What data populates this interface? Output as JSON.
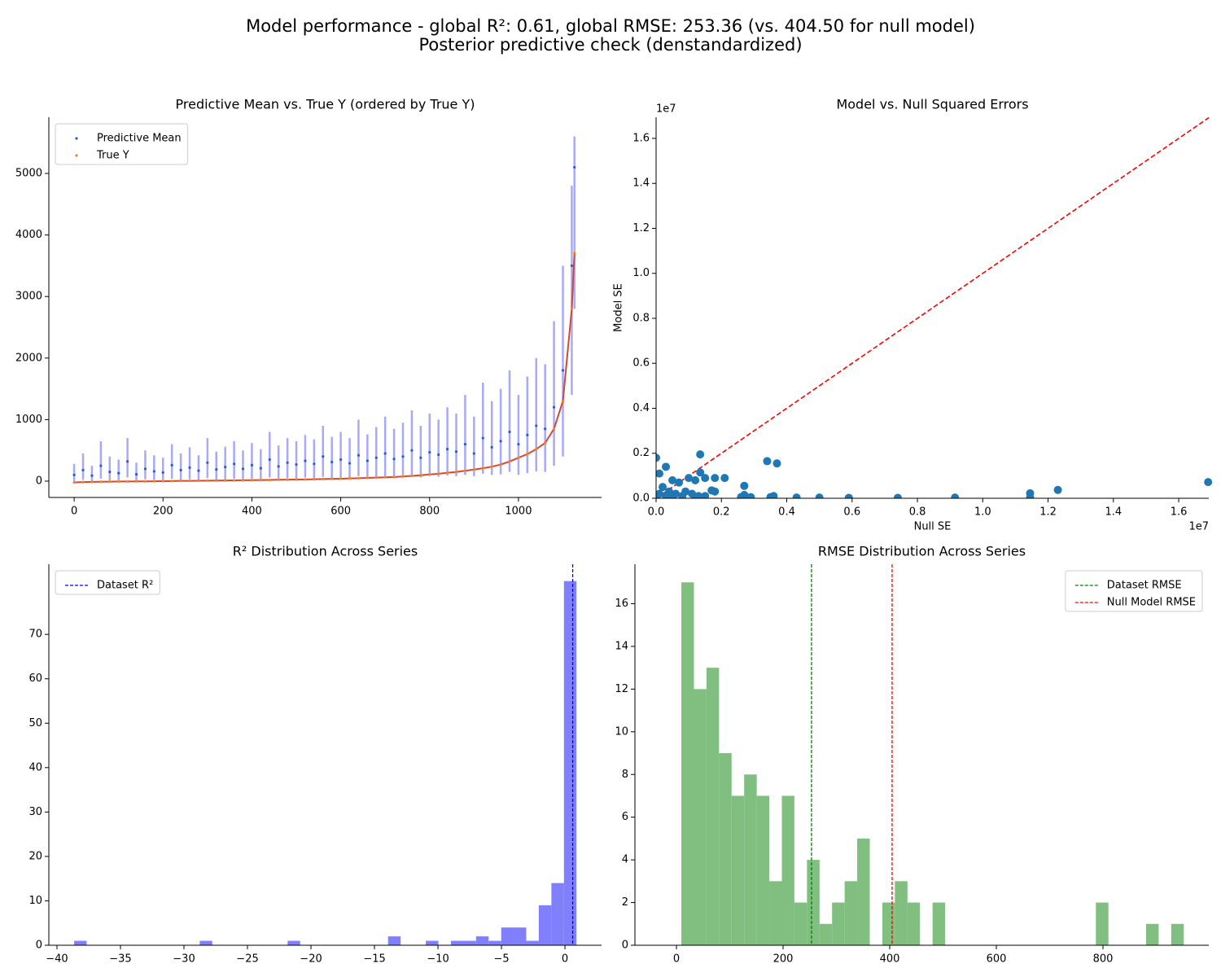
{
  "title": "Model performance - global R²: 0.61, global RMSE: 253.36 (vs. 404.50 for null model)",
  "subtitle": "Posterior predictive check (denstandardized)",
  "chart_data": [
    {
      "type": "line",
      "title": "Predictive Mean vs. True Y (ordered by True Y)",
      "legend": "upper left",
      "x": [
        0,
        20,
        40,
        60,
        80,
        100,
        120,
        140,
        160,
        180,
        200,
        220,
        240,
        260,
        280,
        300,
        320,
        340,
        360,
        380,
        400,
        420,
        440,
        460,
        480,
        500,
        520,
        540,
        560,
        580,
        600,
        620,
        640,
        660,
        680,
        700,
        720,
        740,
        760,
        780,
        800,
        820,
        840,
        860,
        880,
        900,
        920,
        940,
        960,
        980,
        1000,
        1020,
        1040,
        1060,
        1080,
        1100,
        1120,
        1126
      ],
      "xlim": [
        -57,
        1187
      ],
      "xticks": [
        0,
        200,
        400,
        600,
        800,
        1000
      ],
      "ylim": [
        -265,
        5913
      ],
      "yticks": [
        0,
        1000,
        2000,
        3000,
        4000,
        5000
      ],
      "series": [
        {
          "name": "Predictive Mean",
          "color": "#2a5bd7",
          "interval_color": "#6f6ff5",
          "values": [
            100,
            180,
            90,
            250,
            150,
            130,
            320,
            110,
            200,
            160,
            140,
            260,
            180,
            220,
            170,
            300,
            190,
            230,
            280,
            200,
            260,
            210,
            350,
            240,
            300,
            270,
            330,
            280,
            400,
            310,
            350,
            290,
            420,
            330,
            380,
            450,
            360,
            400,
            500,
            380,
            470,
            430,
            520,
            480,
            600,
            450,
            700,
            550,
            650,
            800,
            600,
            750,
            900,
            850,
            1200,
            1800,
            3500,
            5100
          ],
          "lower": [
            0,
            20,
            0,
            40,
            10,
            10,
            60,
            0,
            30,
            20,
            10,
            40,
            20,
            30,
            20,
            50,
            20,
            30,
            40,
            30,
            40,
            30,
            60,
            40,
            50,
            40,
            60,
            40,
            70,
            50,
            60,
            40,
            80,
            50,
            60,
            80,
            60,
            70,
            90,
            60,
            80,
            70,
            90,
            80,
            100,
            80,
            120,
            100,
            110,
            150,
            100,
            130,
            160,
            150,
            250,
            400,
            1400,
            2800
          ],
          "upper": [
            280,
            450,
            250,
            650,
            400,
            350,
            700,
            300,
            500,
            420,
            380,
            600,
            450,
            550,
            420,
            700,
            480,
            560,
            650,
            500,
            620,
            520,
            800,
            580,
            700,
            650,
            750,
            680,
            900,
            720,
            800,
            700,
            1000,
            760,
            880,
            1050,
            850,
            950,
            1150,
            900,
            1100,
            1000,
            1200,
            1100,
            1400,
            1050,
            1600,
            1300,
            1500,
            1800,
            1400,
            1700,
            2000,
            1900,
            2600,
            3500,
            4800,
            5600
          ]
        },
        {
          "name": "True Y",
          "color": "#ff7f0e",
          "line_color": "#d0483a",
          "values": [
            -20,
            -15,
            -12,
            -10,
            -8,
            -6,
            -5,
            -4,
            -3,
            -2,
            0,
            2,
            4,
            5,
            6,
            8,
            10,
            11,
            12,
            14,
            16,
            18,
            20,
            22,
            24,
            26,
            28,
            31,
            34,
            37,
            40,
            44,
            48,
            52,
            57,
            62,
            68,
            75,
            85,
            95,
            108,
            120,
            135,
            150,
            168,
            188,
            210,
            235,
            270,
            320,
            380,
            440,
            520,
            620,
            850,
            1300,
            2800,
            3700
          ]
        }
      ]
    },
    {
      "type": "scatter",
      "title": "Model vs. Null Squared Errors",
      "x_label": "Null SE",
      "y_label": "Model SE",
      "x_offset_label": "1e7",
      "y_offset_label": "1e7",
      "color": "#1f77b4",
      "diagonal_color": "#ff0000",
      "xlim": [
        0,
        1.692
      ],
      "ylim": [
        0,
        1.694
      ],
      "xticks": [
        {
          "value": 0,
          "label": "0.0"
        },
        0.2,
        0.4,
        0.6,
        0.8,
        {
          "value": 1,
          "label": "1.0"
        },
        1.2,
        1.4,
        1.6
      ],
      "yticks": [
        {
          "value": 0,
          "label": "0.0"
        },
        0.2,
        0.4,
        0.6,
        0.8,
        {
          "value": 1,
          "label": "1.0"
        },
        1.2,
        1.4,
        1.6
      ],
      "x": [
        0.135,
        0.135,
        0.1,
        0.12,
        0.15,
        0.18,
        0.21,
        0.17,
        0.18,
        0.11,
        0.13,
        0.15,
        0.07,
        0.05,
        0.03,
        0.0,
        0.02,
        0.04,
        0.06,
        0.08,
        0.01,
        0.03,
        0.26,
        0.27,
        0.27,
        0.29,
        0.34,
        0.37,
        0.35,
        0.36,
        0.43,
        0.5,
        0.59,
        0.74,
        0.915,
        1.145,
        1.145,
        1.23,
        1.69,
        0.0,
        0.01,
        0.05,
        0.09,
        0.12
      ],
      "values": [
        0.195,
        0.115,
        0.09,
        0.08,
        0.09,
        0.09,
        0.09,
        0.035,
        0.03,
        0.02,
        0.01,
        0.01,
        0.07,
        0.08,
        0.14,
        0.18,
        0.05,
        0.03,
        0.02,
        0.01,
        0.11,
        0.01,
        0.005,
        0.055,
        0.015,
        0.005,
        0.165,
        0.155,
        0.005,
        0.01,
        0.003,
        0.003,
        0.002,
        0.002,
        0.003,
        0.022,
        0.002,
        0.037,
        0.072,
        0.0,
        0.02,
        0.005,
        0.03,
        0.005
      ]
    },
    {
      "type": "histogram",
      "title": "R² Distribution Across Series",
      "legend": "upper left",
      "color": "#8080ff",
      "bins": [
        -38.65,
        -37.66,
        -36.67,
        -35.68,
        -34.69,
        -33.71,
        -32.72,
        -31.73,
        -30.74,
        -29.75,
        -28.76,
        -27.77,
        -26.78,
        -25.79,
        -24.8,
        -23.82,
        -22.83,
        -21.84,
        -20.85,
        -19.86,
        -18.87,
        -17.88,
        -16.89,
        -15.9,
        -14.91,
        -13.93,
        -12.94,
        -11.95,
        -10.96,
        -9.97,
        -8.98,
        -7.99,
        -7.0,
        -6.01,
        -5.02,
        -4.04,
        -3.05,
        -2.06,
        -1.07,
        -0.08,
        0.91
      ],
      "values": [
        1,
        0,
        0,
        0,
        0,
        0,
        0,
        0,
        0,
        0,
        1,
        0,
        0,
        0,
        0,
        0,
        0,
        1,
        0,
        0,
        0,
        0,
        0,
        0,
        0,
        2,
        0,
        0,
        1,
        0,
        1,
        1,
        2,
        1,
        4,
        4,
        1,
        9,
        14,
        82
      ],
      "reference_lines": [
        {
          "name": "Dataset R²",
          "value": 0.61,
          "color": "#0000ff"
        }
      ],
      "xlim": [
        -40.64,
        2.88
      ],
      "xticks": [
        {
          "value": -40,
          "label": "−40"
        },
        {
          "value": -35,
          "label": "−35"
        },
        {
          "value": -30,
          "label": "−30"
        },
        {
          "value": -25,
          "label": "−25"
        },
        {
          "value": -20,
          "label": "−20"
        },
        {
          "value": -15,
          "label": "−15"
        },
        {
          "value": -10,
          "label": "−10"
        },
        {
          "value": -5,
          "label": "−5"
        },
        0
      ],
      "ylim": [
        0,
        85.8
      ],
      "yticks": [
        0,
        10,
        20,
        30,
        40,
        50,
        60,
        70
      ]
    },
    {
      "type": "histogram",
      "title": "RMSE Distribution Across Series",
      "legend": "upper right",
      "color": "#80bf80",
      "bins": [
        9.2,
        32.8,
        56.3,
        79.9,
        103.4,
        127.0,
        150.6,
        174.1,
        197.7,
        221.2,
        244.8,
        268.4,
        291.9,
        315.5,
        339.0,
        362.6,
        386.2,
        409.7,
        433.3,
        456.8,
        480.4,
        504.0,
        527.5,
        551.1,
        574.6,
        598.2,
        621.8,
        645.3,
        668.9,
        692.4,
        716.0,
        739.6,
        763.1,
        786.7,
        810.2,
        833.8,
        857.4,
        880.9,
        904.5,
        928.0,
        951.6
      ],
      "values": [
        17,
        12,
        13,
        9,
        7,
        8,
        7,
        3,
        7,
        2,
        4,
        1,
        2,
        3,
        5,
        0,
        2,
        3,
        2,
        0,
        2,
        0,
        0,
        0,
        0,
        0,
        0,
        0,
        0,
        0,
        0,
        0,
        0,
        2,
        0,
        0,
        0,
        1,
        0,
        1
      ],
      "reference_lines": [
        {
          "name": "Dataset RMSE",
          "value": 253.36,
          "color": "#008000"
        },
        {
          "name": "Null Model RMSE",
          "value": 404.5,
          "color": "#ff0000"
        }
      ],
      "xlim": [
        -77.9,
        998.5
      ],
      "xticks": [
        0,
        200,
        400,
        600,
        800
      ],
      "ylim": [
        0,
        17.85
      ],
      "yticks": [
        0,
        2,
        4,
        6,
        8,
        10,
        12,
        14,
        16
      ]
    }
  ]
}
